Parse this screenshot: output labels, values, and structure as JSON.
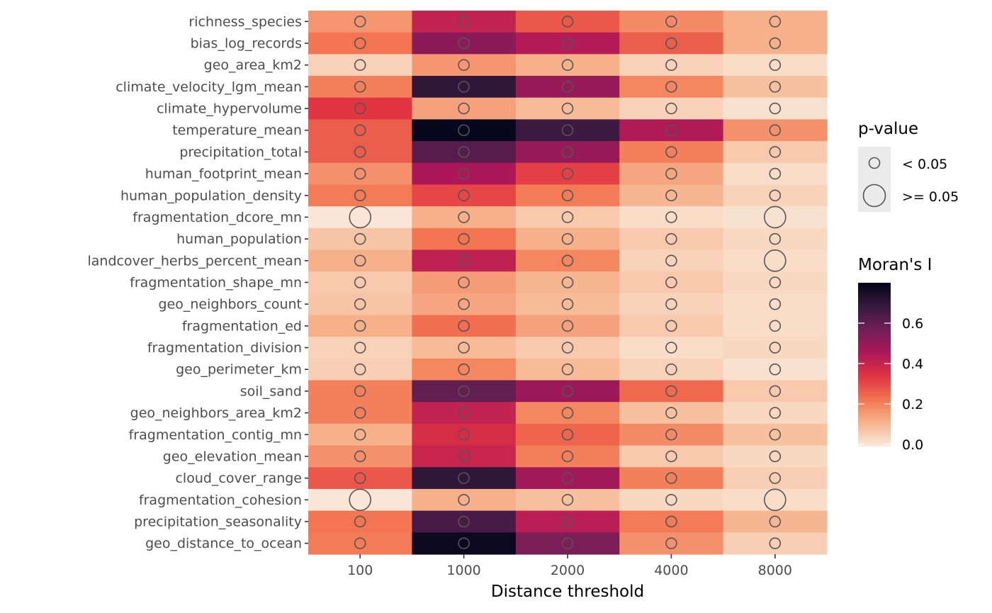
{
  "chart_data": {
    "type": "heatmap",
    "title": "",
    "xlabel": "Distance threshold",
    "ylabel": "",
    "x_categories": [
      "100",
      "1000",
      "2000",
      "4000",
      "8000"
    ],
    "y_categories": [
      "richness_species",
      "bias_log_records",
      "geo_area_km2",
      "climate_velocity_lgm_mean",
      "climate_hypervolume",
      "temperature_mean",
      "precipitation_total",
      "human_footprint_mean",
      "human_population_density",
      "fragmentation_dcore_mn",
      "human_population",
      "landcover_herbs_percent_mean",
      "fragmentation_shape_mn",
      "geo_neighbors_count",
      "fragmentation_ed",
      "fragmentation_division",
      "geo_perimeter_km",
      "soil_sand",
      "geo_neighbors_area_km2",
      "fragmentation_contig_mn",
      "geo_elevation_mean",
      "cloud_cover_range",
      "fragmentation_cohesion",
      "precipitation_seasonality",
      "geo_distance_to_ocean"
    ],
    "values": [
      [
        0.17,
        0.41,
        0.28,
        0.19,
        0.12
      ],
      [
        0.23,
        0.52,
        0.44,
        0.27,
        0.12
      ],
      [
        0.05,
        0.17,
        0.12,
        0.05,
        0.03
      ],
      [
        0.21,
        0.7,
        0.5,
        0.2,
        0.09
      ],
      [
        0.34,
        0.15,
        0.1,
        0.05,
        0.02
      ],
      [
        0.27,
        0.79,
        0.67,
        0.45,
        0.18
      ],
      [
        0.27,
        0.62,
        0.5,
        0.21,
        0.07
      ],
      [
        0.18,
        0.46,
        0.32,
        0.14,
        0.03
      ],
      [
        0.22,
        0.31,
        0.22,
        0.11,
        0.05
      ],
      [
        0.01,
        0.12,
        0.07,
        0.03,
        0.02
      ],
      [
        0.08,
        0.23,
        0.12,
        0.07,
        0.04
      ],
      [
        0.12,
        0.42,
        0.2,
        0.05,
        0.03
      ],
      [
        0.07,
        0.16,
        0.11,
        0.07,
        0.04
      ],
      [
        0.08,
        0.14,
        0.1,
        0.05,
        0.03
      ],
      [
        0.12,
        0.24,
        0.15,
        0.07,
        0.03
      ],
      [
        0.05,
        0.1,
        0.07,
        0.03,
        0.04
      ],
      [
        0.06,
        0.2,
        0.1,
        0.05,
        0.02
      ],
      [
        0.21,
        0.6,
        0.49,
        0.25,
        0.07
      ],
      [
        0.21,
        0.41,
        0.2,
        0.09,
        0.04
      ],
      [
        0.12,
        0.37,
        0.26,
        0.19,
        0.09
      ],
      [
        0.18,
        0.4,
        0.21,
        0.07,
        0.04
      ],
      [
        0.28,
        0.7,
        0.48,
        0.21,
        0.06
      ],
      [
        0.01,
        0.12,
        0.09,
        0.04,
        0.03
      ],
      [
        0.23,
        0.65,
        0.43,
        0.22,
        0.11
      ],
      [
        0.22,
        0.78,
        0.55,
        0.18,
        0.06
      ]
    ],
    "p_value_significant": [
      [
        true,
        true,
        true,
        true,
        true
      ],
      [
        true,
        true,
        true,
        true,
        true
      ],
      [
        true,
        true,
        true,
        true,
        true
      ],
      [
        true,
        true,
        true,
        true,
        true
      ],
      [
        true,
        true,
        true,
        true,
        true
      ],
      [
        true,
        true,
        true,
        true,
        true
      ],
      [
        true,
        true,
        true,
        true,
        true
      ],
      [
        true,
        true,
        true,
        true,
        true
      ],
      [
        true,
        true,
        true,
        true,
        true
      ],
      [
        false,
        true,
        true,
        true,
        false
      ],
      [
        true,
        true,
        true,
        true,
        true
      ],
      [
        true,
        true,
        true,
        true,
        false
      ],
      [
        true,
        true,
        true,
        true,
        true
      ],
      [
        true,
        true,
        true,
        true,
        true
      ],
      [
        true,
        true,
        true,
        true,
        true
      ],
      [
        true,
        true,
        true,
        true,
        true
      ],
      [
        true,
        true,
        true,
        true,
        true
      ],
      [
        true,
        true,
        true,
        true,
        true
      ],
      [
        true,
        true,
        true,
        true,
        true
      ],
      [
        true,
        true,
        true,
        true,
        true
      ],
      [
        true,
        true,
        true,
        true,
        true
      ],
      [
        true,
        true,
        true,
        true,
        true
      ],
      [
        false,
        true,
        true,
        true,
        false
      ],
      [
        true,
        true,
        true,
        true,
        true
      ],
      [
        true,
        true,
        true,
        true,
        true
      ]
    ],
    "color_scale": {
      "name": "rocket (reversed)",
      "range": [
        0.0,
        0.8
      ],
      "title": "Moran's I",
      "ticks": [
        "0.0",
        "0.2",
        "0.4",
        "0.6"
      ],
      "tick_values": [
        0.0,
        0.2,
        0.4,
        0.6
      ],
      "stops": [
        "#FAEBDD",
        "#F6B48E",
        "#F37651",
        "#E13342",
        "#AD1759",
        "#701F57",
        "#35193E",
        "#03051A"
      ]
    },
    "size_legend": {
      "title": "p-value",
      "entries": [
        {
          "label": "< 0.05",
          "significant": true
        },
        {
          "label": ">= 0.05",
          "significant": false
        }
      ]
    },
    "grid": false,
    "legend_position": "right"
  }
}
